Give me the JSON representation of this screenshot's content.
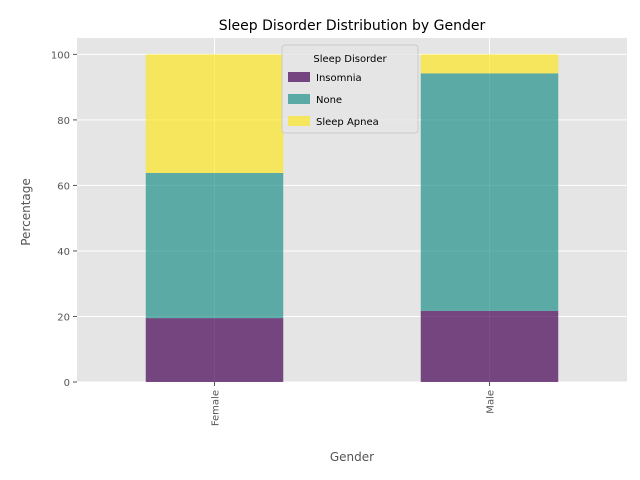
{
  "chart_data": {
    "type": "bar",
    "stacked": true,
    "title": "Sleep Disorder Distribution by Gender",
    "xlabel": "Gender",
    "ylabel": "Percentage",
    "categories": [
      "Female",
      "Male"
    ],
    "series": [
      {
        "name": "Insomnia",
        "values": [
          19.5,
          21.7
        ],
        "color": "#440154"
      },
      {
        "name": "None",
        "values": [
          44.3,
          72.5
        ],
        "color": "#21918c"
      },
      {
        "name": "Sleep Apnea",
        "values": [
          36.2,
          5.8
        ],
        "color": "#fde725"
      }
    ],
    "ylim": [
      0,
      105
    ],
    "yticks": [
      0,
      20,
      40,
      60,
      80,
      100
    ],
    "legend": {
      "title": "Sleep Disorder",
      "position": "top-center"
    },
    "grid": true,
    "background": "#e5e5e5",
    "bar_alpha": 0.7
  }
}
